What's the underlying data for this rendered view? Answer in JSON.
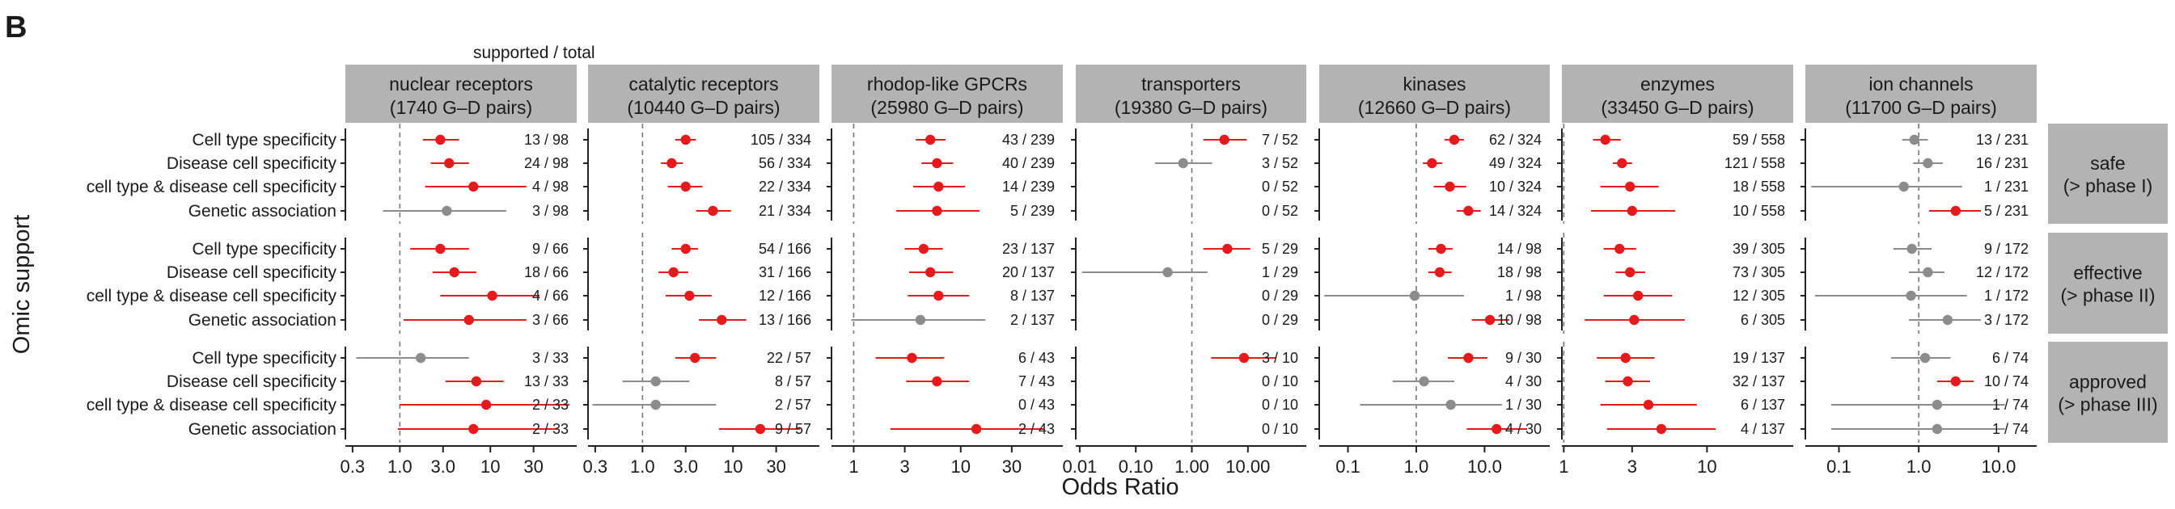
{
  "panel_letter": "B",
  "header_note": "supported / total",
  "chart_data": {
    "type": "forest",
    "x_axis_title": "Odds Ratio",
    "y_axis_title": "Omic support",
    "x_scale": "log",
    "reference_line": 1,
    "colors": {
      "significant": "#e41a1c",
      "not_significant": "#8c8c8c",
      "strip": "#b3b3b3"
    },
    "row_labels": [
      "Cell type specificity",
      "Disease cell specificity",
      "cell type & disease cell specificity",
      "Genetic association"
    ],
    "phases": [
      {
        "id": "safe",
        "line1": "safe",
        "line2": "(> phase I)"
      },
      {
        "id": "effective",
        "line1": "effective",
        "line2": "(> phase II)"
      },
      {
        "id": "approved",
        "line1": "approved",
        "line2": "(> phase III)"
      }
    ],
    "panels": [
      {
        "line1": "nuclear receptors",
        "line2": "(1740 G–D pairs)",
        "xlim": [
          0.25,
          90
        ],
        "ticks": [
          0.3,
          1,
          3,
          10,
          30
        ],
        "tick_labels": [
          "0.3",
          "1.0",
          "3.0",
          "10",
          "30"
        ],
        "rows": [
          [
            {
              "or": 2.8,
              "lo": 1.8,
              "hi": 4.5,
              "sig": true,
              "label": "13 / 98"
            },
            {
              "or": 3.5,
              "lo": 2.2,
              "hi": 5.8,
              "sig": true,
              "label": "24 / 98"
            },
            {
              "or": 6.5,
              "lo": 1.9,
              "hi": 25,
              "sig": true,
              "label": "4 / 98"
            },
            {
              "or": 3.3,
              "lo": 0.65,
              "hi": 15,
              "sig": false,
              "label": "3 / 98"
            }
          ],
          [
            {
              "or": 2.8,
              "lo": 1.3,
              "hi": 5.8,
              "sig": true,
              "label": "9 / 66"
            },
            {
              "or": 4.0,
              "lo": 2.3,
              "hi": 7.0,
              "sig": true,
              "label": "18 / 66"
            },
            {
              "or": 10.5,
              "lo": 2.8,
              "hi": 35,
              "sig": true,
              "label": "4 / 66"
            },
            {
              "or": 5.8,
              "lo": 1.1,
              "hi": 25,
              "sig": true,
              "label": "3 / 66"
            }
          ],
          [
            {
              "or": 1.7,
              "lo": 0.33,
              "hi": 5.8,
              "sig": false,
              "label": "3 / 33"
            },
            {
              "or": 7.0,
              "lo": 3.2,
              "hi": 14,
              "sig": true,
              "label": "13 / 33"
            },
            {
              "or": 9.0,
              "lo": 1.0,
              "hi": 75,
              "sig": true,
              "label": "2 / 33"
            },
            {
              "or": 6.5,
              "lo": 0.95,
              "hi": 55,
              "sig": true,
              "label": "2 / 33"
            }
          ]
        ]
      },
      {
        "line1": "catalytic receptors",
        "line2": "(10440 G–D pairs)",
        "xlim": [
          0.25,
          90
        ],
        "ticks": [
          0.3,
          1,
          3,
          10,
          30
        ],
        "tick_labels": [
          "0.3",
          "1.0",
          "3.0",
          "10",
          "30"
        ],
        "rows": [
          [
            {
              "or": 3.0,
              "lo": 2.3,
              "hi": 3.9,
              "sig": true,
              "label": "105 / 334"
            },
            {
              "or": 2.1,
              "lo": 1.6,
              "hi": 2.8,
              "sig": true,
              "label": "56 / 334"
            },
            {
              "or": 3.0,
              "lo": 1.9,
              "hi": 4.6,
              "sig": true,
              "label": "22 / 334"
            },
            {
              "or": 6.0,
              "lo": 3.9,
              "hi": 9.5,
              "sig": true,
              "label": "21 / 334"
            }
          ],
          [
            {
              "or": 3.0,
              "lo": 2.1,
              "hi": 4.1,
              "sig": true,
              "label": "54 / 166"
            },
            {
              "or": 2.2,
              "lo": 1.5,
              "hi": 3.2,
              "sig": true,
              "label": "31 / 166"
            },
            {
              "or": 3.3,
              "lo": 1.8,
              "hi": 5.8,
              "sig": true,
              "label": "12 / 166"
            },
            {
              "or": 7.5,
              "lo": 4.2,
              "hi": 14,
              "sig": true,
              "label": "13 / 166"
            }
          ],
          [
            {
              "or": 3.8,
              "lo": 2.3,
              "hi": 6.5,
              "sig": true,
              "label": "22 / 57"
            },
            {
              "or": 1.4,
              "lo": 0.6,
              "hi": 3.3,
              "sig": false,
              "label": "8 / 57"
            },
            {
              "or": 1.4,
              "lo": 0.28,
              "hi": 6.5,
              "sig": false,
              "label": "2 / 57"
            },
            {
              "or": 20,
              "lo": 7.0,
              "hi": 55,
              "sig": true,
              "label": "9 / 57"
            }
          ]
        ]
      },
      {
        "line1": "rhodop-like GPCRs",
        "line2": "(25980 G–D pairs)",
        "xlim": [
          0.62,
          90
        ],
        "ticks": [
          1,
          3,
          10,
          30
        ],
        "tick_labels": [
          "1",
          "3",
          "10",
          "30"
        ],
        "rows": [
          [
            {
              "or": 5.2,
              "lo": 3.8,
              "hi": 7.2,
              "sig": true,
              "label": "43 / 239"
            },
            {
              "or": 6.0,
              "lo": 4.3,
              "hi": 8.5,
              "sig": true,
              "label": "40 / 239"
            },
            {
              "or": 6.2,
              "lo": 3.6,
              "hi": 11,
              "sig": true,
              "label": "14 / 239"
            },
            {
              "or": 6.0,
              "lo": 2.5,
              "hi": 15,
              "sig": true,
              "label": "5 / 239"
            }
          ],
          [
            {
              "or": 4.5,
              "lo": 3.0,
              "hi": 6.8,
              "sig": true,
              "label": "23 / 137"
            },
            {
              "or": 5.2,
              "lo": 3.3,
              "hi": 8.5,
              "sig": true,
              "label": "20 / 137"
            },
            {
              "or": 6.2,
              "lo": 3.2,
              "hi": 12,
              "sig": true,
              "label": "8 / 137"
            },
            {
              "or": 4.2,
              "lo": 0.95,
              "hi": 17,
              "sig": false,
              "label": "2 / 137"
            }
          ],
          [
            {
              "or": 3.5,
              "lo": 1.6,
              "hi": 7.0,
              "sig": true,
              "label": "6 / 43"
            },
            {
              "or": 6.0,
              "lo": 3.1,
              "hi": 12,
              "sig": true,
              "label": "7 / 43"
            },
            {
              "or": null,
              "lo": null,
              "hi": null,
              "sig": false,
              "label": "0 / 43"
            },
            {
              "or": 14,
              "lo": 2.2,
              "hi": 60,
              "sig": true,
              "label": "2 / 43"
            }
          ]
        ]
      },
      {
        "line1": "transporters",
        "line2": "(19380 G–D pairs)",
        "xlim": [
          0.0085,
          110
        ],
        "ticks": [
          0.01,
          0.1,
          1,
          10
        ],
        "tick_labels": [
          "0.01",
          "0.10",
          "1.00",
          "10.00"
        ],
        "rows": [
          [
            {
              "or": 3.8,
              "lo": 1.6,
              "hi": 9.5,
              "sig": true,
              "label": "7 / 52"
            },
            {
              "or": 0.7,
              "lo": 0.22,
              "hi": 2.3,
              "sig": false,
              "label": "3 / 52"
            },
            {
              "or": null,
              "lo": null,
              "hi": null,
              "sig": false,
              "label": "0 / 52"
            },
            {
              "or": null,
              "lo": null,
              "hi": null,
              "sig": false,
              "label": "0 / 52"
            }
          ],
          [
            {
              "or": 4.3,
              "lo": 1.6,
              "hi": 11,
              "sig": true,
              "label": "5 / 29"
            },
            {
              "or": 0.37,
              "lo": 0.011,
              "hi": 1.9,
              "sig": false,
              "label": "1 / 29"
            },
            {
              "or": null,
              "lo": null,
              "hi": null,
              "sig": false,
              "label": "0 / 29"
            },
            {
              "or": null,
              "lo": null,
              "hi": null,
              "sig": false,
              "label": "0 / 29"
            }
          ],
          [
            {
              "or": 8.5,
              "lo": 2.2,
              "hi": 32,
              "sig": true,
              "label": "3 / 10"
            },
            {
              "or": null,
              "lo": null,
              "hi": null,
              "sig": false,
              "label": "0 / 10"
            },
            {
              "or": null,
              "lo": null,
              "hi": null,
              "sig": false,
              "label": "0 / 10"
            },
            {
              "or": null,
              "lo": null,
              "hi": null,
              "sig": false,
              "label": "0 / 10"
            }
          ]
        ]
      },
      {
        "line1": "kinases",
        "line2": "(12660 G–D pairs)",
        "xlim": [
          0.038,
          90
        ],
        "ticks": [
          0.1,
          1,
          10
        ],
        "tick_labels": [
          "0.1",
          "1.0",
          "10.0"
        ],
        "rows": [
          [
            {
              "or": 3.6,
              "lo": 2.6,
              "hi": 5.0,
              "sig": true,
              "label": "62 / 324"
            },
            {
              "or": 1.7,
              "lo": 1.25,
              "hi": 2.4,
              "sig": true,
              "label": "49 / 324"
            },
            {
              "or": 3.1,
              "lo": 1.8,
              "hi": 5.4,
              "sig": true,
              "label": "10 / 324"
            },
            {
              "or": 5.8,
              "lo": 3.9,
              "hi": 8.8,
              "sig": true,
              "label": "14 / 324"
            }
          ],
          [
            {
              "or": 2.3,
              "lo": 1.5,
              "hi": 3.4,
              "sig": true,
              "label": "14 / 98"
            },
            {
              "or": 2.2,
              "lo": 1.5,
              "hi": 3.3,
              "sig": true,
              "label": "18 / 98"
            },
            {
              "or": 0.95,
              "lo": 0.045,
              "hi": 5.0,
              "sig": false,
              "label": "1 / 98"
            },
            {
              "or": 12,
              "lo": 6.5,
              "hi": 23,
              "sig": true,
              "label": "10 / 98"
            }
          ],
          [
            {
              "or": 5.8,
              "lo": 2.9,
              "hi": 11,
              "sig": true,
              "label": "9 / 30"
            },
            {
              "or": 1.3,
              "lo": 0.45,
              "hi": 3.6,
              "sig": false,
              "label": "4 / 30"
            },
            {
              "or": 3.2,
              "lo": 0.15,
              "hi": 18,
              "sig": false,
              "label": "1 / 30"
            },
            {
              "or": 15,
              "lo": 5.5,
              "hi": 42,
              "sig": true,
              "label": "4 / 30"
            }
          ]
        ]
      },
      {
        "line1": "enzymes",
        "line2": "(33450 G–D pairs)",
        "xlim": [
          0.97,
          40
        ],
        "ticks": [
          1,
          3,
          10
        ],
        "tick_labels": [
          "1",
          "3",
          "10"
        ],
        "rows": [
          [
            {
              "or": 1.95,
              "lo": 1.6,
              "hi": 2.5,
              "sig": true,
              "label": "59 / 558"
            },
            {
              "or": 2.55,
              "lo": 2.2,
              "hi": 3.0,
              "sig": true,
              "label": "121 / 558"
            },
            {
              "or": 2.9,
              "lo": 1.8,
              "hi": 4.6,
              "sig": true,
              "label": "18 / 558"
            },
            {
              "or": 3.0,
              "lo": 1.55,
              "hi": 6.0,
              "sig": true,
              "label": "10 / 558"
            }
          ],
          [
            {
              "or": 2.45,
              "lo": 1.9,
              "hi": 3.2,
              "sig": true,
              "label": "39 / 305"
            },
            {
              "or": 2.9,
              "lo": 2.3,
              "hi": 3.7,
              "sig": true,
              "label": "73 / 305"
            },
            {
              "or": 3.3,
              "lo": 1.9,
              "hi": 5.7,
              "sig": true,
              "label": "12 / 305"
            },
            {
              "or": 3.1,
              "lo": 1.4,
              "hi": 7.0,
              "sig": true,
              "label": "6 / 305"
            }
          ],
          [
            {
              "or": 2.7,
              "lo": 1.7,
              "hi": 4.3,
              "sig": true,
              "label": "19 / 137"
            },
            {
              "or": 2.8,
              "lo": 1.95,
              "hi": 4.0,
              "sig": true,
              "label": "32 / 137"
            },
            {
              "or": 3.9,
              "lo": 1.8,
              "hi": 8.5,
              "sig": true,
              "label": "6 / 137"
            },
            {
              "or": 4.8,
              "lo": 2.0,
              "hi": 11.5,
              "sig": true,
              "label": "4 / 137"
            }
          ]
        ]
      },
      {
        "line1": "ion channels",
        "line2": "(11700 G–D pairs)",
        "xlim": [
          0.038,
          30
        ],
        "ticks": [
          0.1,
          1,
          10
        ],
        "tick_labels": [
          "0.1",
          "1.0",
          "10.0"
        ],
        "rows": [
          [
            {
              "or": 0.88,
              "lo": 0.62,
              "hi": 1.3,
              "sig": false,
              "label": "13 / 231"
            },
            {
              "or": 1.3,
              "lo": 0.85,
              "hi": 2.0,
              "sig": false,
              "label": "16 / 231"
            },
            {
              "or": 0.65,
              "lo": 0.045,
              "hi": 3.5,
              "sig": false,
              "label": "1 / 231"
            },
            {
              "or": 2.9,
              "lo": 1.35,
              "hi": 6.0,
              "sig": true,
              "label": "5 / 231"
            }
          ],
          [
            {
              "or": 0.82,
              "lo": 0.48,
              "hi": 1.45,
              "sig": false,
              "label": "9 / 172"
            },
            {
              "or": 1.3,
              "lo": 0.75,
              "hi": 2.1,
              "sig": false,
              "label": "12 / 172"
            },
            {
              "or": 0.8,
              "lo": 0.05,
              "hi": 4.0,
              "sig": false,
              "label": "1 / 172"
            },
            {
              "or": 2.3,
              "lo": 0.75,
              "hi": 6.0,
              "sig": false,
              "label": "3 / 172"
            }
          ],
          [
            {
              "or": 1.2,
              "lo": 0.45,
              "hi": 2.5,
              "sig": false,
              "label": "6 / 74"
            },
            {
              "or": 2.9,
              "lo": 1.7,
              "hi": 4.9,
              "sig": true,
              "label": "10 / 74"
            },
            {
              "or": 1.7,
              "lo": 0.08,
              "hi": 12,
              "sig": false,
              "label": "1 / 74"
            },
            {
              "or": 1.7,
              "lo": 0.08,
              "hi": 12,
              "sig": false,
              "label": "1 / 74"
            }
          ]
        ]
      }
    ]
  }
}
